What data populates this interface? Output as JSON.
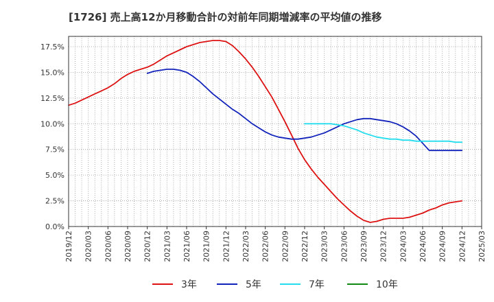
{
  "chart_data": {
    "type": "line",
    "title": "[1726]  売上高12か月移動合計の対前年同期増減率の平均値の推移",
    "xlabel": "",
    "ylabel": "",
    "x_ticks": [
      "2019/12",
      "2020/03",
      "2020/06",
      "2020/09",
      "2020/12",
      "2021/03",
      "2021/06",
      "2021/09",
      "2021/12",
      "2022/03",
      "2022/06",
      "2022/09",
      "2022/12",
      "2023/03",
      "2023/06",
      "2023/09",
      "2023/12",
      "2024/03",
      "2024/06",
      "2024/09",
      "2024/12",
      "2025/03"
    ],
    "y_ticks": [
      "0.0%",
      "2.5%",
      "5.0%",
      "7.5%",
      "10.0%",
      "12.5%",
      "15.0%",
      "17.5%"
    ],
    "ylim": [
      0,
      18.5
    ],
    "grid": true,
    "legend_position": "bottom",
    "colors": {
      "3y": "#dd1111",
      "5y": "#1122bb",
      "7y": "#22ddee",
      "10y": "#118811"
    },
    "series": [
      {
        "name": "3年",
        "color": "#dd1111",
        "x": [
          "2019/12",
          "2020/01",
          "2020/02",
          "2020/03",
          "2020/04",
          "2020/05",
          "2020/06",
          "2020/07",
          "2020/08",
          "2020/09",
          "2020/10",
          "2020/11",
          "2020/12",
          "2021/01",
          "2021/02",
          "2021/03",
          "2021/04",
          "2021/05",
          "2021/06",
          "2021/07",
          "2021/08",
          "2021/09",
          "2021/10",
          "2021/11",
          "2021/12",
          "2022/01",
          "2022/02",
          "2022/03",
          "2022/04",
          "2022/05",
          "2022/06",
          "2022/07",
          "2022/08",
          "2022/09",
          "2022/10",
          "2022/11",
          "2022/12",
          "2023/01",
          "2023/02",
          "2023/03",
          "2023/04",
          "2023/05",
          "2023/06",
          "2023/07",
          "2023/08",
          "2023/09",
          "2023/10",
          "2023/11",
          "2023/12",
          "2024/01",
          "2024/02",
          "2024/03",
          "2024/04",
          "2024/05",
          "2024/06",
          "2024/07",
          "2024/08",
          "2024/09",
          "2024/10",
          "2024/11",
          "2024/12"
        ],
        "values": [
          11.8,
          12.0,
          12.3,
          12.6,
          12.9,
          13.2,
          13.5,
          13.9,
          14.4,
          14.8,
          15.1,
          15.3,
          15.5,
          15.8,
          16.2,
          16.6,
          16.9,
          17.2,
          17.5,
          17.7,
          17.9,
          18.0,
          18.1,
          18.1,
          18.0,
          17.6,
          17.0,
          16.3,
          15.5,
          14.6,
          13.6,
          12.6,
          11.4,
          10.2,
          8.9,
          7.6,
          6.5,
          5.6,
          4.8,
          4.1,
          3.4,
          2.7,
          2.1,
          1.5,
          1.0,
          0.6,
          0.4,
          0.5,
          0.7,
          0.8,
          0.8,
          0.8,
          0.9,
          1.1,
          1.3,
          1.6,
          1.8,
          2.1,
          2.3,
          2.4,
          2.5
        ]
      },
      {
        "name": "5年",
        "color": "#1122bb",
        "x": [
          "2020/12",
          "2021/01",
          "2021/02",
          "2021/03",
          "2021/04",
          "2021/05",
          "2021/06",
          "2021/07",
          "2021/08",
          "2021/09",
          "2021/10",
          "2021/11",
          "2021/12",
          "2022/01",
          "2022/02",
          "2022/03",
          "2022/04",
          "2022/05",
          "2022/06",
          "2022/07",
          "2022/08",
          "2022/09",
          "2022/10",
          "2022/11",
          "2022/12",
          "2023/01",
          "2023/02",
          "2023/03",
          "2023/04",
          "2023/05",
          "2023/06",
          "2023/07",
          "2023/08",
          "2023/09",
          "2023/10",
          "2023/11",
          "2023/12",
          "2024/01",
          "2024/02",
          "2024/03",
          "2024/04",
          "2024/05",
          "2024/06",
          "2024/07",
          "2024/08",
          "2024/09",
          "2024/10",
          "2024/11",
          "2024/12"
        ],
        "values": [
          14.9,
          15.1,
          15.2,
          15.3,
          15.3,
          15.2,
          15.0,
          14.6,
          14.1,
          13.5,
          12.9,
          12.4,
          11.9,
          11.4,
          11.0,
          10.5,
          10.0,
          9.6,
          9.2,
          8.9,
          8.7,
          8.6,
          8.5,
          8.5,
          8.6,
          8.7,
          8.9,
          9.1,
          9.4,
          9.7,
          10.0,
          10.2,
          10.4,
          10.5,
          10.5,
          10.4,
          10.3,
          10.2,
          10.0,
          9.7,
          9.3,
          8.8,
          8.1,
          7.4,
          7.4,
          7.4,
          7.4,
          7.4,
          7.4
        ]
      },
      {
        "name": "7年",
        "color": "#22ddee",
        "x": [
          "2022/12",
          "2023/01",
          "2023/02",
          "2023/03",
          "2023/04",
          "2023/05",
          "2023/06",
          "2023/07",
          "2023/08",
          "2023/09",
          "2023/10",
          "2023/11",
          "2023/12",
          "2024/01",
          "2024/02",
          "2024/03",
          "2024/04",
          "2024/05",
          "2024/06",
          "2024/07",
          "2024/08",
          "2024/09",
          "2024/10",
          "2024/11",
          "2024/12"
        ],
        "values": [
          10.0,
          10.0,
          10.0,
          10.0,
          10.0,
          9.9,
          9.8,
          9.6,
          9.4,
          9.1,
          8.9,
          8.7,
          8.6,
          8.5,
          8.5,
          8.4,
          8.4,
          8.3,
          8.3,
          8.3,
          8.3,
          8.3,
          8.3,
          8.2,
          8.2
        ]
      },
      {
        "name": "10年",
        "color": "#118811",
        "x": [],
        "values": []
      }
    ]
  }
}
